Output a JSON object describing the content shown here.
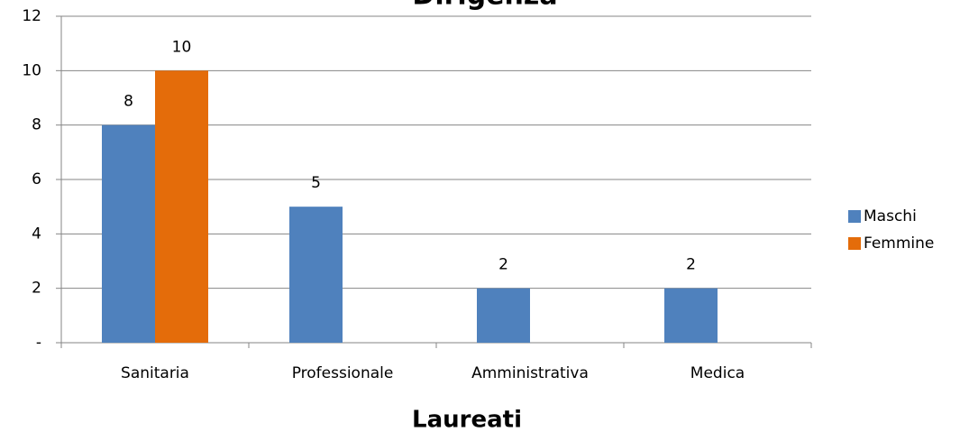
{
  "chart_data": {
    "type": "bar",
    "title": "Dirigenza",
    "x_label": "Laureati",
    "categories": [
      "Sanitaria",
      "Professionale",
      "Amministrativa",
      "Medica"
    ],
    "series": [
      {
        "name": "Maschi",
        "color": "#4f81bd",
        "values": [
          8,
          5,
          2,
          2
        ]
      },
      {
        "name": "Femmine",
        "color": "#e46c0a",
        "values": [
          10,
          null,
          null,
          null
        ]
      }
    ],
    "ylim": [
      0,
      12
    ],
    "yticks": [
      {
        "value": 0,
        "label": "-"
      },
      2,
      4,
      6,
      8,
      10,
      12
    ],
    "grid": true,
    "legend": "right"
  }
}
